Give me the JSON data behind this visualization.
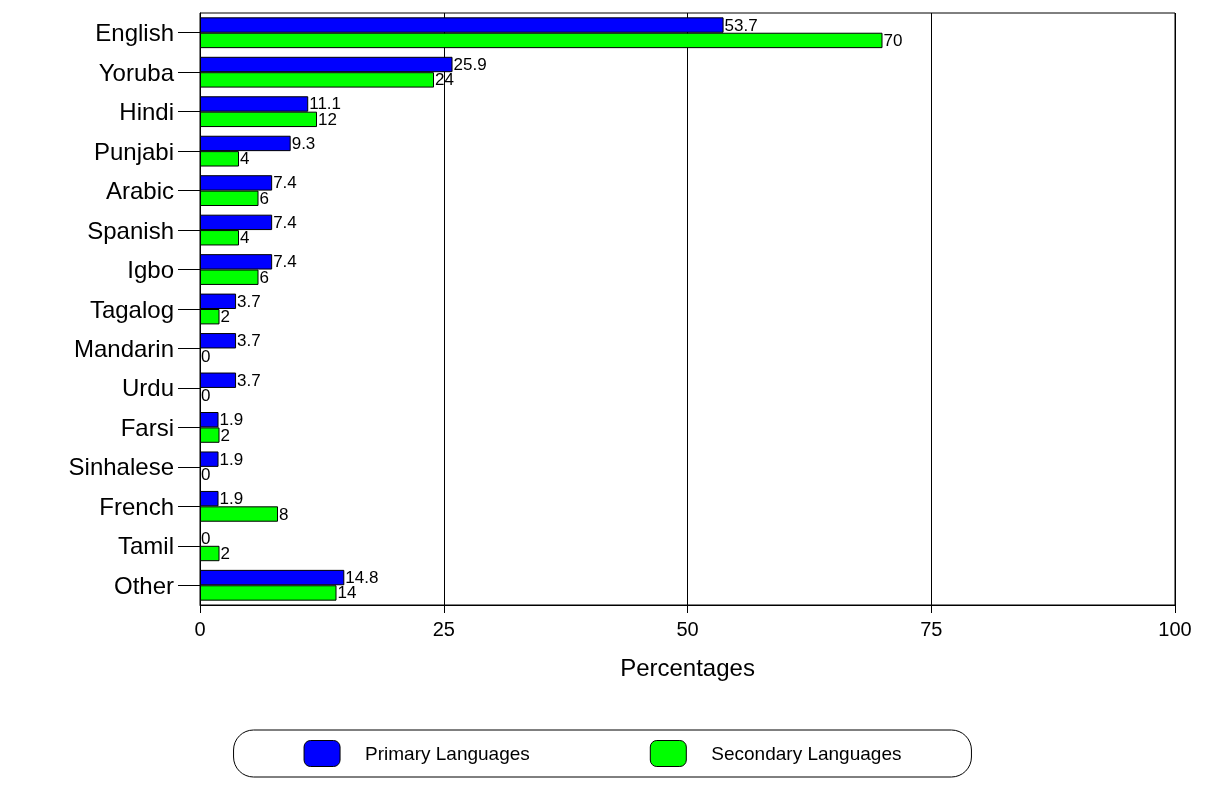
{
  "chart_data": {
    "type": "bar",
    "orientation": "horizontal",
    "xlabel": "Percentages",
    "categories": [
      "English",
      "Yoruba",
      "Hindi",
      "Punjabi",
      "Arabic",
      "Spanish",
      "Igbo",
      "Tagalog",
      "Mandarin",
      "Urdu",
      "Farsi",
      "Sinhalese",
      "French",
      "Tamil",
      "Other"
    ],
    "series": [
      {
        "name": "Primary Languages",
        "color": "#0000ff",
        "values": [
          53.7,
          25.9,
          11.1,
          9.3,
          7.4,
          7.4,
          7.4,
          3.7,
          3.7,
          3.7,
          1.9,
          1.9,
          1.9,
          0,
          14.8
        ]
      },
      {
        "name": "Secondary Languages",
        "color": "#00ff00",
        "values": [
          70,
          24,
          12,
          4,
          6,
          4,
          6,
          2,
          0,
          0,
          2,
          0,
          8,
          2,
          14
        ]
      }
    ],
    "xlim": [
      0,
      100
    ],
    "xticks": [
      0,
      25,
      50,
      75,
      100
    ],
    "grid": "x",
    "legend": "bottom",
    "data_labels": true
  }
}
